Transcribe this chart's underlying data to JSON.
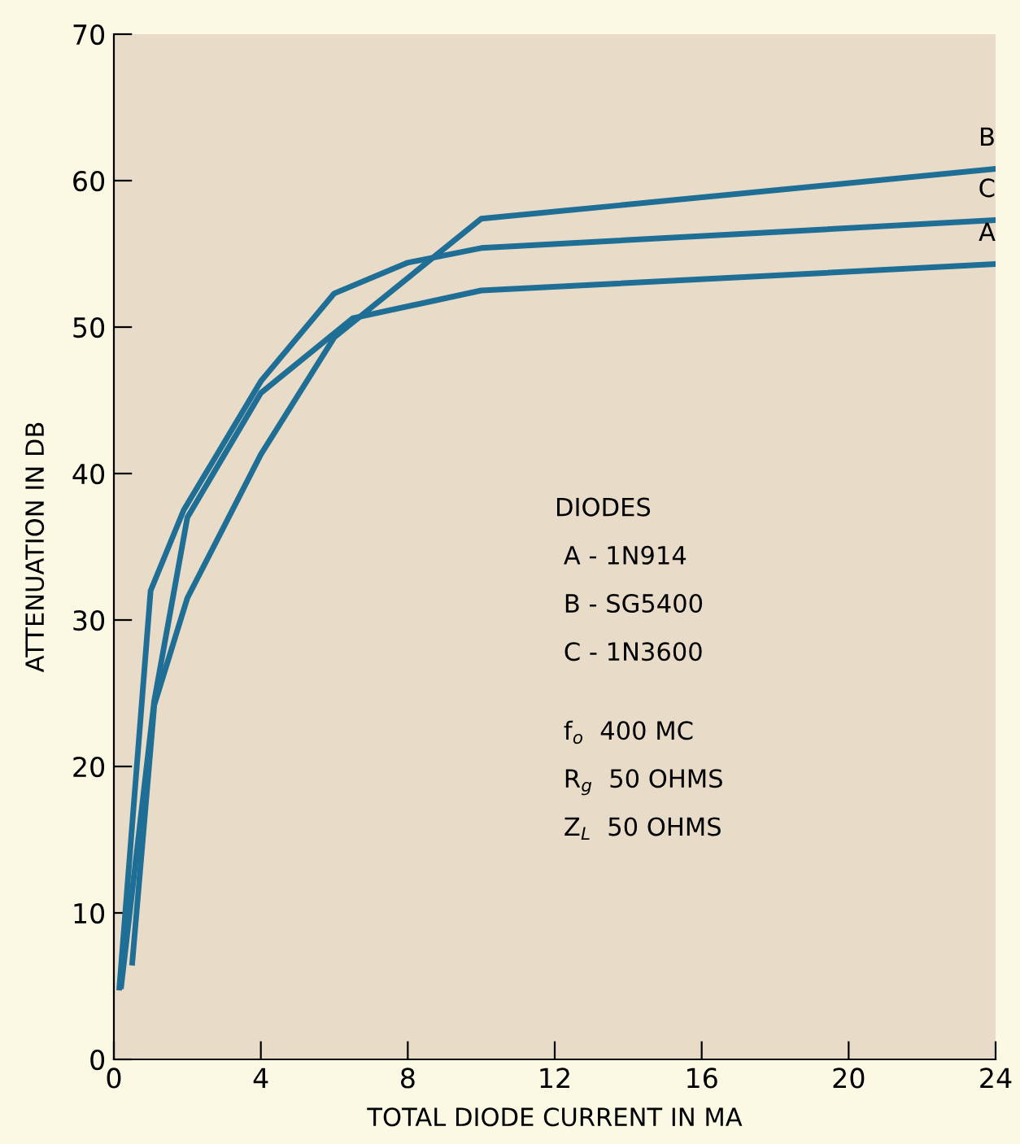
{
  "chart_data": {
    "type": "line",
    "xlabel": "TOTAL DIODE CURRENT IN MA",
    "ylabel": "ATTENUATION IN DB",
    "xlim": [
      0,
      24
    ],
    "xticks": [
      0,
      4,
      8,
      12,
      16,
      20,
      24
    ],
    "ylim": [
      0,
      70
    ],
    "yticks": [
      0,
      10,
      20,
      30,
      40,
      50,
      60,
      70
    ],
    "grid": false,
    "legend": false,
    "marker": "none",
    "line_style": "solid",
    "series": [
      {
        "name": "A",
        "color": "#1f6e96",
        "x": [
          0.2,
          1.1,
          2,
          4,
          6.5,
          10,
          24
        ],
        "values": [
          5,
          24.5,
          37,
          45.5,
          50.6,
          52.5,
          54.3
        ]
      },
      {
        "name": "B",
        "color": "#1f6e96",
        "x": [
          0.5,
          1.1,
          2,
          4,
          6,
          10,
          24
        ],
        "values": [
          6.6,
          24.2,
          31.5,
          41.3,
          49.3,
          57.4,
          60.8
        ]
      },
      {
        "name": "C",
        "color": "#1f6e96",
        "x": [
          0.15,
          1,
          1.9,
          4,
          6,
          8,
          10,
          24
        ],
        "values": [
          4.9,
          32,
          37.5,
          46.3,
          52.3,
          54.4,
          55.4,
          57.3
        ]
      }
    ],
    "annotations": [
      "DIODES",
      "A - 1N914",
      "B - SG5400",
      "C - 1N3600",
      "f$_{o}$  400 MC",
      "R$_{g}$  50 OHMS",
      "Z$_{L}$  50 OHMS"
    ]
  }
}
